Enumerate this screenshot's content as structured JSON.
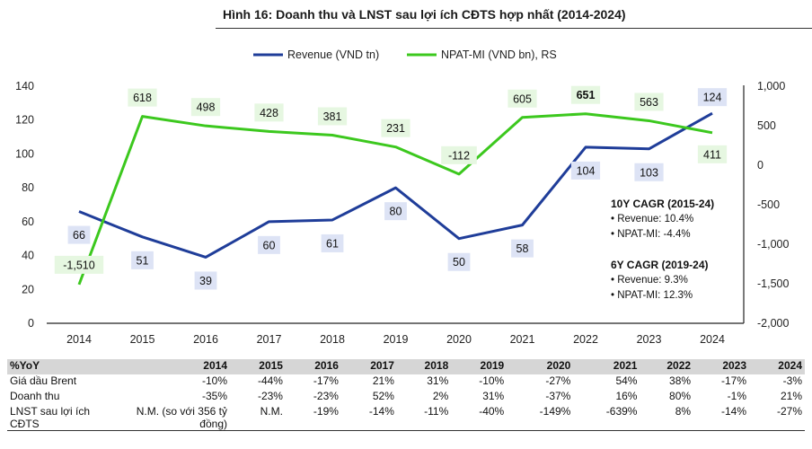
{
  "title": "Hình 16: Doanh thu và LNST sau lợi ích CĐTS hợp nhất (2014-2024)",
  "colors": {
    "revenue": "#1f3d99",
    "npat": "#3cc81e",
    "revenue_label_bg": "#dde3f5",
    "npat_label_bg": "#e6f7e1"
  },
  "chart_data": {
    "type": "line",
    "x": [
      "2014",
      "2015",
      "2016",
      "2017",
      "2018",
      "2019",
      "2020",
      "2021",
      "2022",
      "2023",
      "2024"
    ],
    "series": [
      {
        "name": "Revenue (VND tn)",
        "axis": "left",
        "values": [
          66,
          51,
          39,
          60,
          61,
          80,
          50,
          58,
          104,
          103,
          124
        ],
        "labels": [
          "66",
          "51",
          "39",
          "60",
          "61",
          "80",
          "50",
          "58",
          "104",
          "103",
          "124"
        ]
      },
      {
        "name": "NPAT-MI (VND bn), RS",
        "axis": "right",
        "values": [
          -1510,
          618,
          498,
          428,
          381,
          231,
          -112,
          605,
          651,
          563,
          411
        ],
        "labels": [
          "-1,510",
          "618",
          "498",
          "428",
          "381",
          "231",
          "-112",
          "605",
          "651",
          "563",
          "411"
        ]
      }
    ],
    "ylim_left": [
      0,
      140
    ],
    "yticks_left": [
      "0",
      "20",
      "40",
      "60",
      "80",
      "100",
      "120",
      "140"
    ],
    "ylim_right": [
      -2000,
      1000
    ],
    "yticks_right": [
      "-2,000",
      "-1,500",
      "-1,000",
      "-500",
      "0",
      "500",
      "1,000"
    ],
    "legend_position": "top-center"
  },
  "cagr": [
    {
      "title": "10Y CAGR (2015-24)",
      "lines": [
        "• Revenue: 10.4%",
        "• NPAT-MI: -4.4%"
      ]
    },
    {
      "title": "6Y CAGR (2019-24)",
      "lines": [
        "• Revenue: 9.3%",
        "• NPAT-MI: 12.3%"
      ]
    }
  ],
  "table": {
    "header": [
      "%YoY",
      "2014",
      "2015",
      "2016",
      "2017",
      "2018",
      "2019",
      "2020",
      "2021",
      "2022",
      "2023",
      "2024"
    ],
    "rows": [
      [
        "Giá dầu Brent",
        "-10%",
        "-44%",
        "-17%",
        "21%",
        "31%",
        "-10%",
        "-27%",
        "54%",
        "38%",
        "-17%",
        "-3%"
      ],
      [
        "Doanh thu",
        "-35%",
        "-23%",
        "-23%",
        "52%",
        "2%",
        "31%",
        "-37%",
        "16%",
        "80%",
        "-1%",
        "21%"
      ],
      [
        "LNST sau lợi ích CĐTS",
        "N.M. (so với 356 tỷ đồng)",
        "N.M.",
        "-19%",
        "-14%",
        "-11%",
        "-40%",
        "-149%",
        "-639%",
        "8%",
        "-14%",
        "-27%"
      ]
    ]
  }
}
